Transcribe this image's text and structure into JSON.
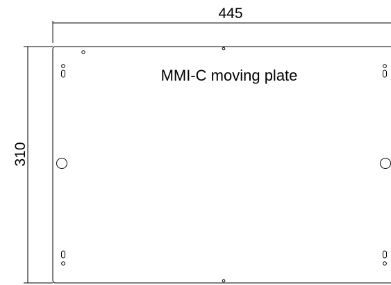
{
  "drawing": {
    "title": "MMI-C moving plate",
    "width_dimension": "445",
    "height_dimension": "310"
  }
}
